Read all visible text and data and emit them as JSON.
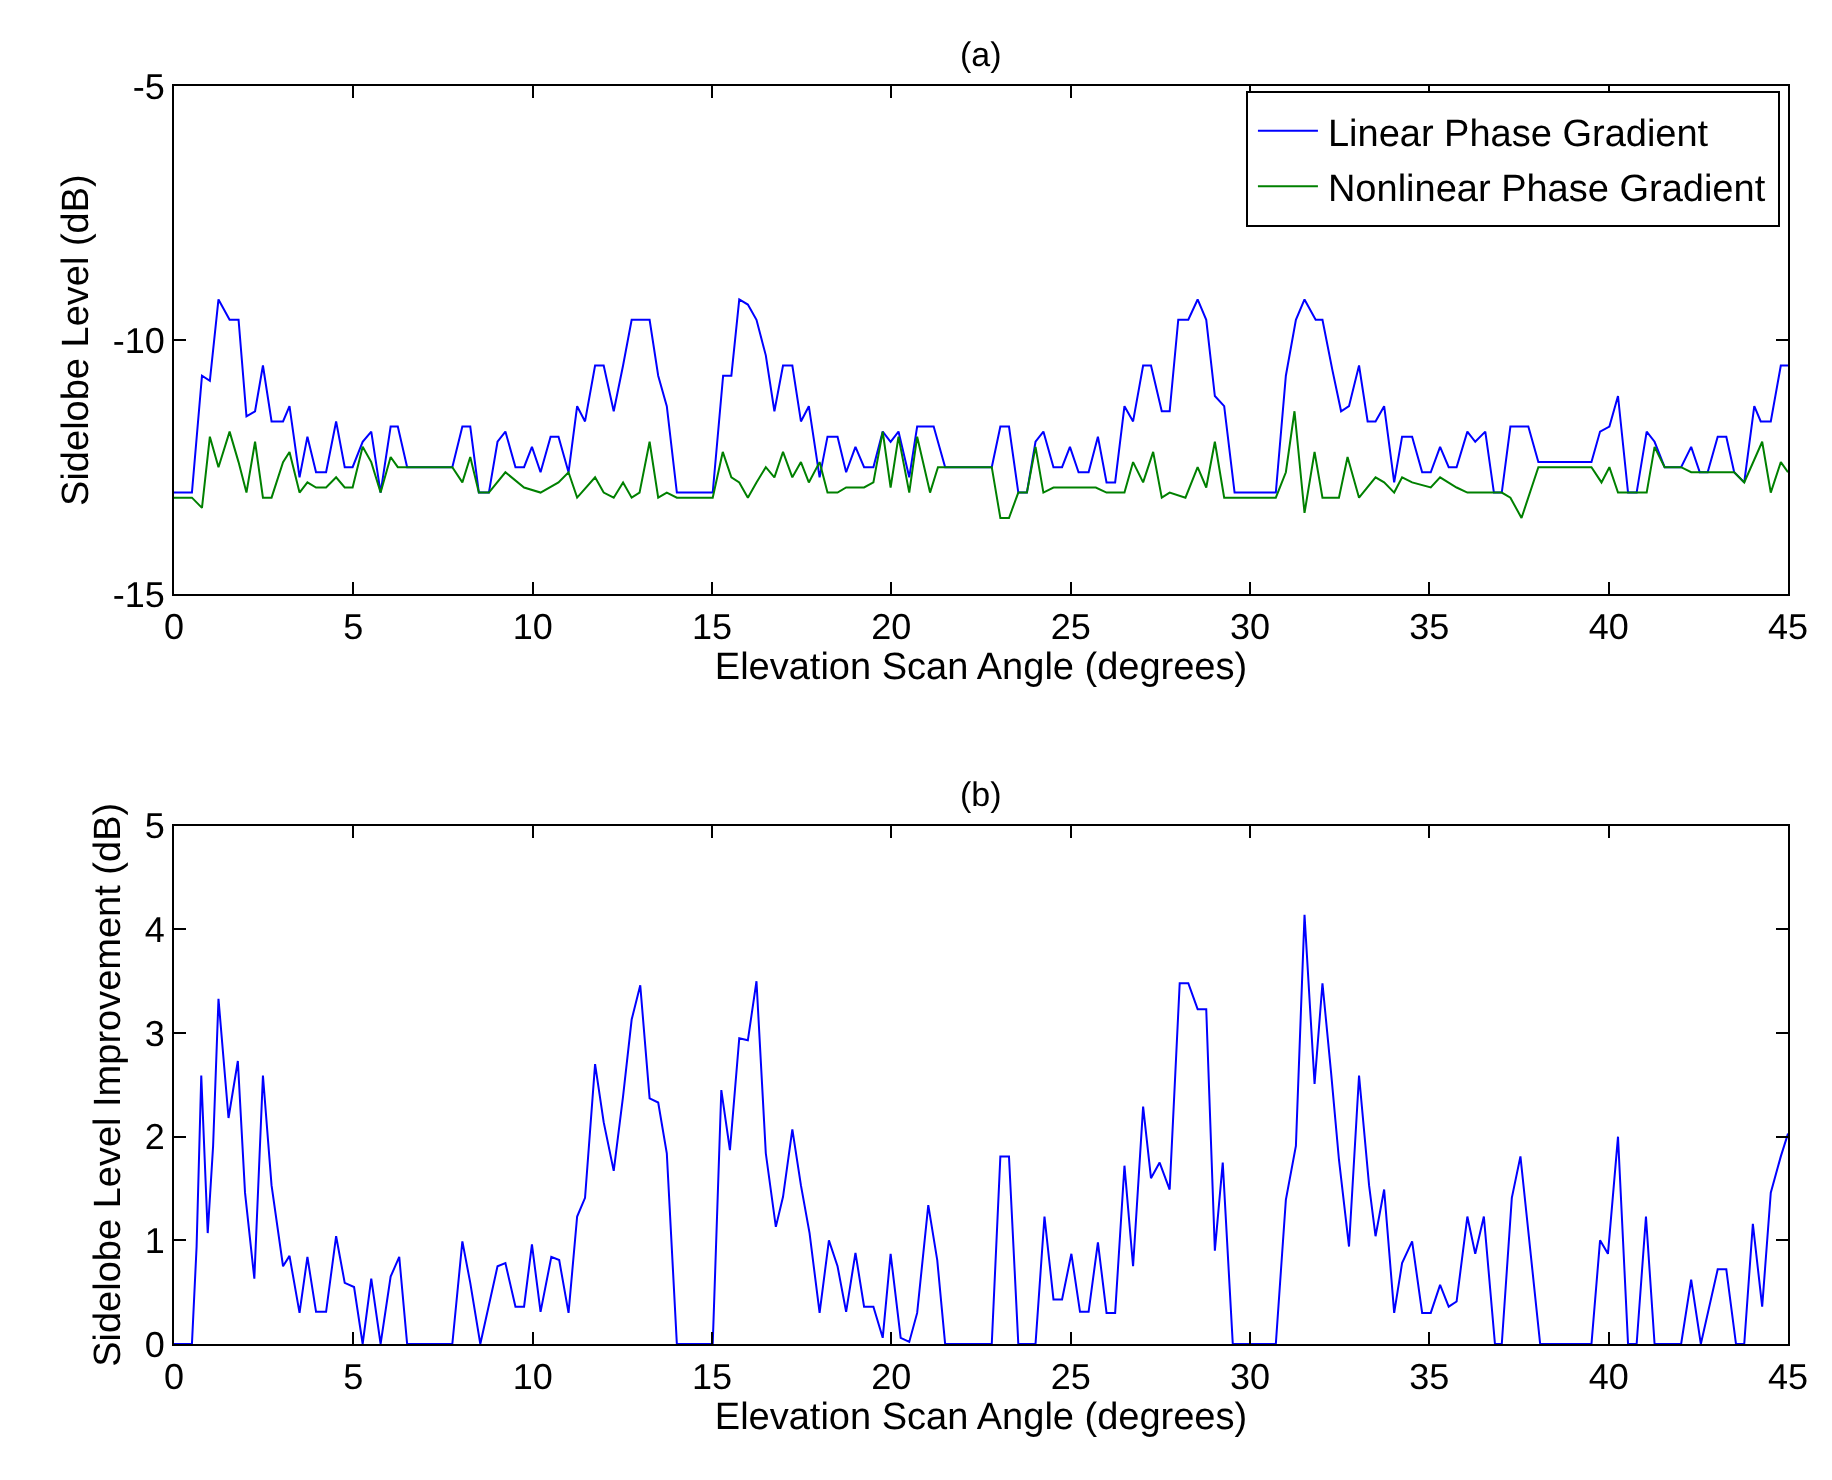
{
  "chart_data": [
    {
      "type": "line",
      "title": "(a)",
      "xlabel": "Elevation Scan Angle (degrees)",
      "ylabel": "Sidelobe Level (dB)",
      "xlim": [
        0,
        45
      ],
      "xticks": [
        0,
        5,
        10,
        15,
        20,
        25,
        30,
        35,
        40,
        45
      ],
      "ylim": [
        -15,
        -5
      ],
      "yticks": [
        -15,
        -10,
        -5
      ],
      "legend": "top right",
      "marker": "none",
      "line_style": "solid",
      "series": [
        {
          "name": "Linear Phase Gradient",
          "color": "#0000ff",
          "x": [
            0,
            0.5,
            0.78,
            1.0,
            1.24,
            1.55,
            1.8,
            2.02,
            2.26,
            2.48,
            2.72,
            3.04,
            3.22,
            3.5,
            3.72,
            3.96,
            4.24,
            4.52,
            4.76,
            4.98,
            5.26,
            5.5,
            5.76,
            6.04,
            6.24,
            6.5,
            7.76,
            8.04,
            8.26,
            8.5,
            8.78,
            9.02,
            9.24,
            9.52,
            9.76,
            9.98,
            10.22,
            10.5,
            10.72,
            11.0,
            11.24,
            11.46,
            11.74,
            11.98,
            12.26,
            12.52,
            12.76,
            13.26,
            13.5,
            13.74,
            14.02,
            15.02,
            15.31,
            15.54,
            15.76,
            16.0,
            16.24,
            16.5,
            16.74,
            16.98,
            17.24,
            17.48,
            17.7,
            18.0,
            18.22,
            18.5,
            18.74,
            19.0,
            19.24,
            19.5,
            19.76,
            19.98,
            20.2,
            20.5,
            20.72,
            21.18,
            21.5,
            22.8,
            23.04,
            23.28,
            23.54,
            23.78,
            24.02,
            24.24,
            24.52,
            24.76,
            24.98,
            25.22,
            25.5,
            25.76,
            26.0,
            26.24,
            26.5,
            26.74,
            27.02,
            27.24,
            27.54,
            27.76,
            28.0,
            28.28,
            28.54,
            28.78,
            29.02,
            29.28,
            29.57,
            30.72,
            31.0,
            31.28,
            31.52,
            31.83,
            32.02,
            32.3,
            32.54,
            32.76,
            33.04,
            33.28,
            33.5,
            33.74,
            34.02,
            34.24,
            34.52,
            34.8,
            35.04,
            35.3,
            35.54,
            35.76,
            36.06,
            36.28,
            36.56,
            36.8,
            37.02,
            37.26,
            37.76,
            38.04,
            39.52,
            39.76,
            40.02,
            40.26,
            40.54,
            40.78,
            41.06,
            41.28,
            41.56,
            42.02,
            42.3,
            42.54,
            42.76,
            43.04,
            43.28,
            43.5,
            43.78,
            44.06,
            44.24,
            44.52,
            44.8,
            45.0
          ],
          "values": [
            -13.0,
            -13.0,
            -10.7,
            -10.8,
            -9.2,
            -9.6,
            -9.6,
            -11.5,
            -11.4,
            -10.5,
            -11.6,
            -11.6,
            -11.3,
            -12.7,
            -11.9,
            -12.6,
            -12.6,
            -11.6,
            -12.5,
            -12.5,
            -12.0,
            -11.8,
            -13.0,
            -11.7,
            -11.7,
            -12.5,
            -12.5,
            -11.7,
            -11.7,
            -13.0,
            -13.0,
            -12.0,
            -11.8,
            -12.5,
            -12.5,
            -12.1,
            -12.6,
            -11.9,
            -11.9,
            -12.6,
            -11.3,
            -11.6,
            -10.5,
            -10.5,
            -11.4,
            -10.5,
            -9.6,
            -9.6,
            -10.7,
            -11.3,
            -13.0,
            -13.0,
            -10.7,
            -10.7,
            -9.2,
            -9.3,
            -9.6,
            -10.3,
            -11.4,
            -10.5,
            -10.5,
            -11.6,
            -11.3,
            -12.7,
            -11.9,
            -11.9,
            -12.6,
            -12.1,
            -12.5,
            -12.5,
            -11.8,
            -12.0,
            -11.8,
            -12.7,
            -11.7,
            -11.7,
            -12.5,
            -12.5,
            -11.7,
            -11.7,
            -13.0,
            -13.0,
            -12.0,
            -11.8,
            -12.5,
            -12.5,
            -12.1,
            -12.6,
            -12.6,
            -11.9,
            -12.8,
            -12.8,
            -11.3,
            -11.6,
            -10.5,
            -10.5,
            -11.4,
            -11.4,
            -9.6,
            -9.6,
            -9.2,
            -9.6,
            -11.1,
            -11.3,
            -13.0,
            -13.0,
            -10.7,
            -9.6,
            -9.2,
            -9.6,
            -9.6,
            -10.6,
            -11.4,
            -11.3,
            -10.5,
            -11.6,
            -11.6,
            -11.3,
            -12.8,
            -11.9,
            -11.9,
            -12.6,
            -12.6,
            -12.1,
            -12.5,
            -12.5,
            -11.8,
            -12.0,
            -11.8,
            -13.0,
            -13.0,
            -11.7,
            -11.7,
            -12.4,
            -12.4,
            -11.8,
            -11.7,
            -11.1,
            -13.0,
            -13.0,
            -11.8,
            -12.0,
            -12.5,
            -12.5,
            -12.1,
            -12.6,
            -12.6,
            -11.9,
            -11.9,
            -12.6,
            -12.8,
            -11.3,
            -11.6,
            -11.6,
            -10.5,
            -10.5
          ]
        },
        {
          "name": "Nonlinear Phase Gradient",
          "color": "#008000",
          "x": [
            0,
            0.5,
            0.78,
            1.0,
            1.24,
            1.55,
            1.8,
            2.02,
            2.26,
            2.48,
            2.72,
            3.04,
            3.22,
            3.5,
            3.72,
            3.96,
            4.24,
            4.52,
            4.76,
            4.98,
            5.26,
            5.5,
            5.76,
            6.04,
            6.24,
            6.5,
            7.76,
            8.04,
            8.26,
            8.5,
            8.78,
            9.24,
            9.76,
            10.22,
            10.72,
            11.0,
            11.24,
            11.74,
            11.98,
            12.26,
            12.52,
            12.76,
            12.98,
            13.26,
            13.5,
            13.74,
            14.02,
            15.02,
            15.3,
            15.54,
            15.76,
            16.0,
            16.24,
            16.5,
            16.74,
            16.98,
            17.24,
            17.48,
            17.7,
            18.0,
            18.22,
            18.5,
            18.74,
            19.0,
            19.24,
            19.5,
            19.76,
            19.98,
            20.2,
            20.5,
            20.72,
            21.08,
            21.3,
            22.8,
            23.04,
            23.28,
            23.54,
            23.78,
            24.02,
            24.24,
            24.52,
            25.7,
            26.0,
            26.5,
            26.74,
            27.02,
            27.3,
            27.54,
            27.76,
            28.2,
            28.54,
            28.78,
            29.02,
            29.28,
            30.72,
            31.0,
            31.24,
            31.52,
            31.8,
            32.02,
            32.48,
            32.72,
            33.04,
            33.5,
            33.74,
            34.02,
            34.24,
            34.52,
            35.04,
            35.3,
            35.76,
            36.06,
            36.28,
            36.56,
            37.02,
            37.26,
            37.57,
            38.04,
            39.52,
            39.8,
            40.02,
            40.26,
            41.06,
            41.28,
            41.56,
            42.02,
            42.3,
            43.5,
            43.78,
            44.28,
            44.52,
            44.8,
            45.0
          ],
          "values": [
            -13.1,
            -13.1,
            -13.3,
            -11.9,
            -12.5,
            -11.8,
            -12.4,
            -13.0,
            -12.0,
            -13.1,
            -13.1,
            -12.4,
            -12.2,
            -13.0,
            -12.8,
            -12.9,
            -12.9,
            -12.7,
            -12.9,
            -12.9,
            -12.1,
            -12.4,
            -13.0,
            -12.3,
            -12.5,
            -12.5,
            -12.5,
            -12.8,
            -12.3,
            -13.0,
            -13.0,
            -12.6,
            -12.9,
            -13.0,
            -12.8,
            -12.6,
            -13.1,
            -12.7,
            -13.0,
            -13.1,
            -12.8,
            -13.1,
            -13.0,
            -12.0,
            -13.1,
            -13.0,
            -13.1,
            -13.1,
            -12.2,
            -12.7,
            -12.8,
            -13.1,
            -12.8,
            -12.5,
            -12.7,
            -12.2,
            -12.7,
            -12.4,
            -12.8,
            -12.4,
            -13.0,
            -13.0,
            -12.9,
            -12.9,
            -12.9,
            -12.8,
            -11.8,
            -12.9,
            -11.9,
            -13.0,
            -11.9,
            -13.0,
            -12.5,
            -12.5,
            -13.5,
            -13.5,
            -13.0,
            -13.0,
            -12.1,
            -13.0,
            -12.9,
            -12.9,
            -13.0,
            -13.0,
            -12.4,
            -12.8,
            -12.2,
            -13.1,
            -13.0,
            -13.1,
            -12.5,
            -12.9,
            -12.0,
            -13.1,
            -13.1,
            -12.6,
            -11.4,
            -13.4,
            -12.2,
            -13.1,
            -13.1,
            -12.3,
            -13.1,
            -12.7,
            -12.8,
            -13.0,
            -12.7,
            -12.8,
            -12.9,
            -12.7,
            -12.9,
            -13.0,
            -13.0,
            -13.0,
            -13.0,
            -13.1,
            -13.5,
            -12.5,
            -12.5,
            -12.8,
            -12.5,
            -13.0,
            -13.0,
            -12.1,
            -12.5,
            -12.5,
            -12.6,
            -12.6,
            -12.8,
            -12.0,
            -13.0,
            -12.4,
            -12.6
          ]
        }
      ]
    },
    {
      "type": "line",
      "title": "(b)",
      "xlabel": "Elevation Scan Angle (degrees)",
      "ylabel": "Sidelobe Level Improvement (dB)",
      "xlim": [
        0,
        45
      ],
      "xticks": [
        0,
        5,
        10,
        15,
        20,
        25,
        30,
        35,
        40,
        45
      ],
      "ylim": [
        0,
        5
      ],
      "yticks": [
        0,
        1,
        2,
        3,
        4,
        5
      ],
      "marker": "none",
      "line_style": "solid",
      "series": [
        {
          "color": "#0000ff",
          "x": [
            0,
            0.5,
            0.63,
            0.76,
            0.94,
            1.09,
            1.24,
            1.52,
            1.78,
            1.98,
            2.24,
            2.48,
            2.72,
            3.04,
            3.22,
            3.5,
            3.72,
            3.96,
            4.24,
            4.52,
            4.76,
            5.02,
            5.26,
            5.5,
            5.76,
            6.04,
            6.28,
            6.5,
            7.76,
            8.04,
            8.26,
            8.54,
            9.02,
            9.24,
            9.52,
            9.76,
            9.98,
            10.22,
            10.52,
            10.74,
            11.0,
            11.24,
            11.46,
            11.74,
            11.98,
            12.26,
            12.52,
            12.76,
            13.0,
            13.26,
            13.5,
            13.74,
            14.02,
            15.02,
            15.26,
            15.5,
            15.76,
            16.0,
            16.24,
            16.5,
            16.78,
            16.98,
            17.24,
            17.48,
            17.72,
            18.0,
            18.26,
            18.5,
            18.74,
            19.0,
            19.24,
            19.5,
            19.76,
            19.98,
            20.26,
            20.5,
            20.72,
            21.03,
            21.28,
            21.5,
            22.8,
            23.04,
            23.28,
            23.54,
            24.02,
            24.27,
            24.52,
            24.76,
            25.02,
            25.26,
            25.5,
            25.76,
            26.0,
            26.24,
            26.5,
            26.74,
            27.02,
            27.24,
            27.48,
            27.76,
            28.04,
            28.28,
            28.54,
            28.78,
            29.02,
            29.24,
            29.52,
            30.72,
            31.0,
            31.28,
            31.52,
            31.8,
            32.02,
            32.26,
            32.48,
            32.76,
            33.04,
            33.32,
            33.5,
            33.74,
            34.02,
            34.24,
            34.52,
            34.8,
            35.04,
            35.3,
            35.54,
            35.76,
            36.06,
            36.28,
            36.52,
            36.83,
            37.02,
            37.3,
            37.54,
            38.09,
            39.52,
            39.76,
            39.98,
            40.26,
            40.54,
            40.78,
            41.04,
            41.28,
            42.02,
            42.3,
            42.57,
            43.04,
            43.28,
            43.55,
            43.78,
            44.02,
            44.28,
            44.52,
            44.8,
            45.0
          ],
          "values": [
            0,
            0,
            0.94,
            2.59,
            1.07,
            1.91,
            3.33,
            2.18,
            2.73,
            1.46,
            0.63,
            2.59,
            1.53,
            0.75,
            0.85,
            0.3,
            0.84,
            0.31,
            0.31,
            1.04,
            0.59,
            0.55,
            0,
            0.63,
            0,
            0.65,
            0.84,
            0,
            0,
            0.99,
            0.59,
            0,
            0.75,
            0.78,
            0.36,
            0.36,
            0.96,
            0.31,
            0.84,
            0.81,
            0.3,
            1.23,
            1.41,
            2.7,
            2.14,
            1.67,
            2.39,
            3.13,
            3.46,
            2.37,
            2.33,
            1.84,
            0,
            0,
            2.45,
            1.87,
            2.95,
            2.93,
            3.5,
            1.84,
            1.13,
            1.42,
            2.07,
            1.53,
            1.07,
            0.3,
            1.0,
            0.75,
            0.31,
            0.88,
            0.36,
            0.36,
            0.06,
            0.87,
            0.06,
            0.02,
            0.3,
            1.34,
            0.81,
            0,
            0,
            1.81,
            1.81,
            0,
            0,
            1.23,
            0.43,
            0.43,
            0.87,
            0.31,
            0.31,
            0.98,
            0.3,
            0.3,
            1.72,
            0.75,
            2.29,
            1.6,
            1.75,
            1.49,
            3.48,
            3.48,
            3.23,
            3.23,
            0.9,
            1.75,
            0,
            0,
            1.39,
            1.91,
            4.14,
            2.51,
            3.48,
            2.62,
            1.78,
            0.94,
            2.59,
            1.53,
            1.04,
            1.49,
            0.3,
            0.78,
            0.99,
            0.3,
            0.3,
            0.57,
            0.36,
            0.41,
            1.23,
            0.87,
            1.23,
            0,
            0,
            1.41,
            1.81,
            0,
            0,
            1.0,
            0.87,
            2.0,
            0,
            0,
            1.23,
            0,
            0,
            0.62,
            0,
            0.72,
            0.72,
            0,
            0,
            1.16,
            0.36,
            1.46,
            1.81,
            2.03
          ]
        }
      ]
    }
  ]
}
